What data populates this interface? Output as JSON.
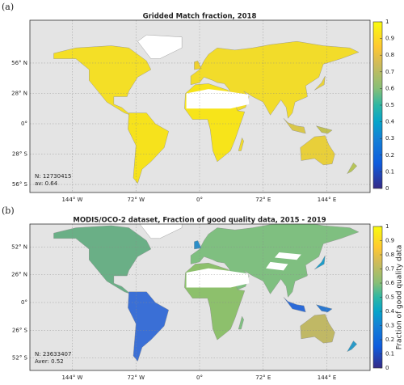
{
  "panels": [
    {
      "label": "(a)",
      "title": "Gridded Match fraction, 2018",
      "yticks": [
        {
          "value": 56,
          "label": "56° N"
        },
        {
          "value": 28,
          "label": "28° N"
        },
        {
          "value": 0,
          "label": "0°"
        },
        {
          "value": -28,
          "label": "28° S"
        },
        {
          "value": -56,
          "label": "56° S"
        }
      ],
      "xticks": [
        {
          "value": -144,
          "label": "144° W"
        },
        {
          "value": -72,
          "label": "72° W"
        },
        {
          "value": 0,
          "label": "0°"
        },
        {
          "value": 72,
          "label": "72° E"
        },
        {
          "value": 144,
          "label": "144° E"
        }
      ],
      "annotations": [
        "N: 12730415",
        "av: 0.64"
      ],
      "colorbar": {
        "ticks": [
          0,
          0.1,
          0.2,
          0.3,
          0.4,
          0.5,
          0.6,
          0.7,
          0.8,
          0.9,
          1
        ]
      }
    },
    {
      "label": "(b)",
      "title": "MODIS/OCO-2 dataset, Fraction of good quality data, 2015 - 2019",
      "yticks": [
        {
          "value": 52,
          "label": "52° N"
        },
        {
          "value": 26,
          "label": "26° N"
        },
        {
          "value": 0,
          "label": "0°"
        },
        {
          "value": -26,
          "label": "26° S"
        },
        {
          "value": -52,
          "label": "52° S"
        }
      ],
      "xticks": [
        {
          "value": -144,
          "label": "144° W"
        },
        {
          "value": -72,
          "label": "72° W"
        },
        {
          "value": 0,
          "label": "0°"
        },
        {
          "value": 72,
          "label": "72° E"
        },
        {
          "value": 144,
          "label": "144° E"
        }
      ],
      "annotations": [
        "N: 23633407",
        "Aver: 0.52"
      ],
      "colorbar": {
        "ticks": [
          0,
          0.1,
          0.2,
          0.3,
          0.4,
          0.5,
          0.6,
          0.7,
          0.8,
          0.9,
          1
        ],
        "label": "Fraction of good quality data"
      }
    }
  ]
}
